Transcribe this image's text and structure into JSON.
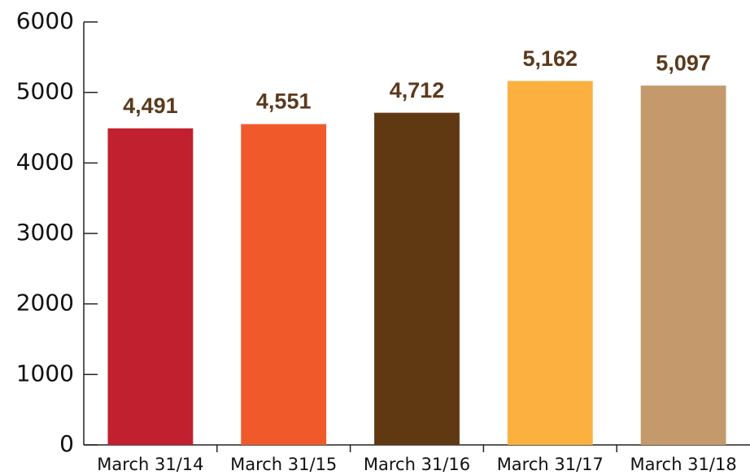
{
  "chart_data": {
    "type": "bar",
    "categories": [
      "March 31/14",
      "March 31/15",
      "March 31/16",
      "March 31/17",
      "March 31/18"
    ],
    "values": [
      4491,
      4551,
      4712,
      5162,
      5097
    ],
    "value_labels": [
      "4,491",
      "4,551",
      "4,712",
      "5,162",
      "5,097"
    ],
    "colors": [
      "#c1202f",
      "#f05a2b",
      "#603913",
      "#fbb040",
      "#c49a6c"
    ],
    "ylim": [
      0,
      6000
    ],
    "yticks": [
      0,
      1000,
      2000,
      3000,
      4000,
      5000,
      6000
    ]
  }
}
